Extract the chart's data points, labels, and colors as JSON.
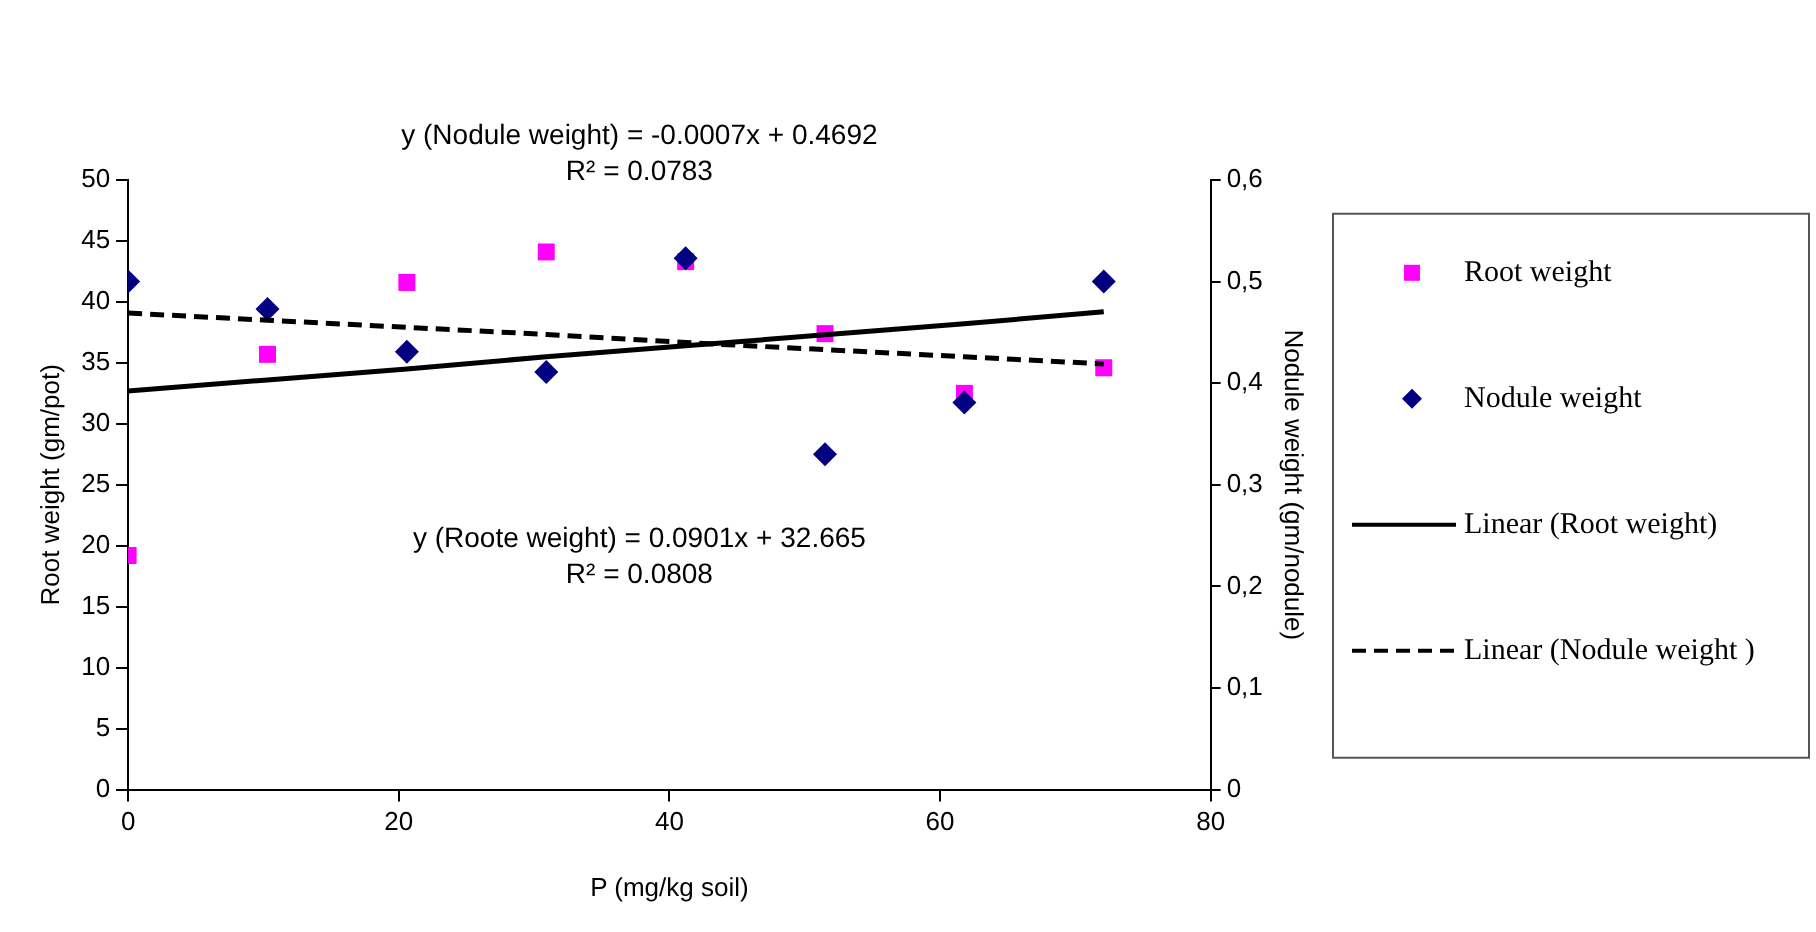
{
  "chart_data": {
    "type": "scatter",
    "xlabel": "P (mg/kg soil)",
    "ylabel": "Root weight (gm/pot)",
    "y2label": "Nodule weight (gm/nodule)",
    "xlim": [
      0,
      80
    ],
    "xticks": [
      0,
      20,
      40,
      60,
      80
    ],
    "ylim": [
      0,
      50
    ],
    "yticks": [
      0,
      5,
      10,
      15,
      20,
      25,
      30,
      35,
      40,
      45,
      50
    ],
    "y2lim": [
      0,
      0.6
    ],
    "y2ticks": [
      {
        "value": 0,
        "label": "0"
      },
      {
        "value": 0.1,
        "label": "0,1"
      },
      {
        "value": 0.2,
        "label": "0,2"
      },
      {
        "value": 0.3,
        "label": "0,3"
      },
      {
        "value": 0.4,
        "label": "0,4"
      },
      {
        "value": 0.5,
        "label": "0,5"
      },
      {
        "value": 0.6,
        "label": "0,6"
      }
    ],
    "grid": false,
    "legend": "right",
    "x": [
      0,
      10.3,
      20.6,
      30.9,
      41.2,
      51.5,
      61.8,
      72.1
    ],
    "series": [
      {
        "name": "Root weight",
        "type": "scatter",
        "marker": "square",
        "color": "#ff00ff",
        "values": [
          19.2,
          35.7,
          41.6,
          44.1,
          43.3,
          37.4,
          32.5,
          34.6
        ]
      },
      {
        "name": "Nodule weight",
        "type": "scatter",
        "marker": "diamond",
        "color": "#000080",
        "axis": "y2",
        "values": [
          0.5,
          0.473,
          0.431,
          0.411,
          0.523,
          0.33,
          0.381,
          0.5
        ]
      },
      {
        "name": "Linear (Root weight)",
        "type": "line",
        "marker": "none",
        "line_style": "solid",
        "color": "#000000",
        "values": [
          32.7,
          33.6,
          34.5,
          35.5,
          36.4,
          37.3,
          38.2,
          39.2
        ]
      },
      {
        "name": "Linear (Nodule weight )",
        "type": "line",
        "marker": "none",
        "line_style": "dashed",
        "color": "#000000",
        "axis": "y2",
        "values": [
          0.469,
          0.462,
          0.455,
          0.448,
          0.44,
          0.433,
          0.426,
          0.419
        ]
      }
    ],
    "annotations": [
      "y (Nodule weight) = -0.0007x + 0.4692",
      "R² = 0.0783",
      "y (Roote weight) = 0.0901x + 32.665",
      "R² = 0.0808"
    ]
  }
}
